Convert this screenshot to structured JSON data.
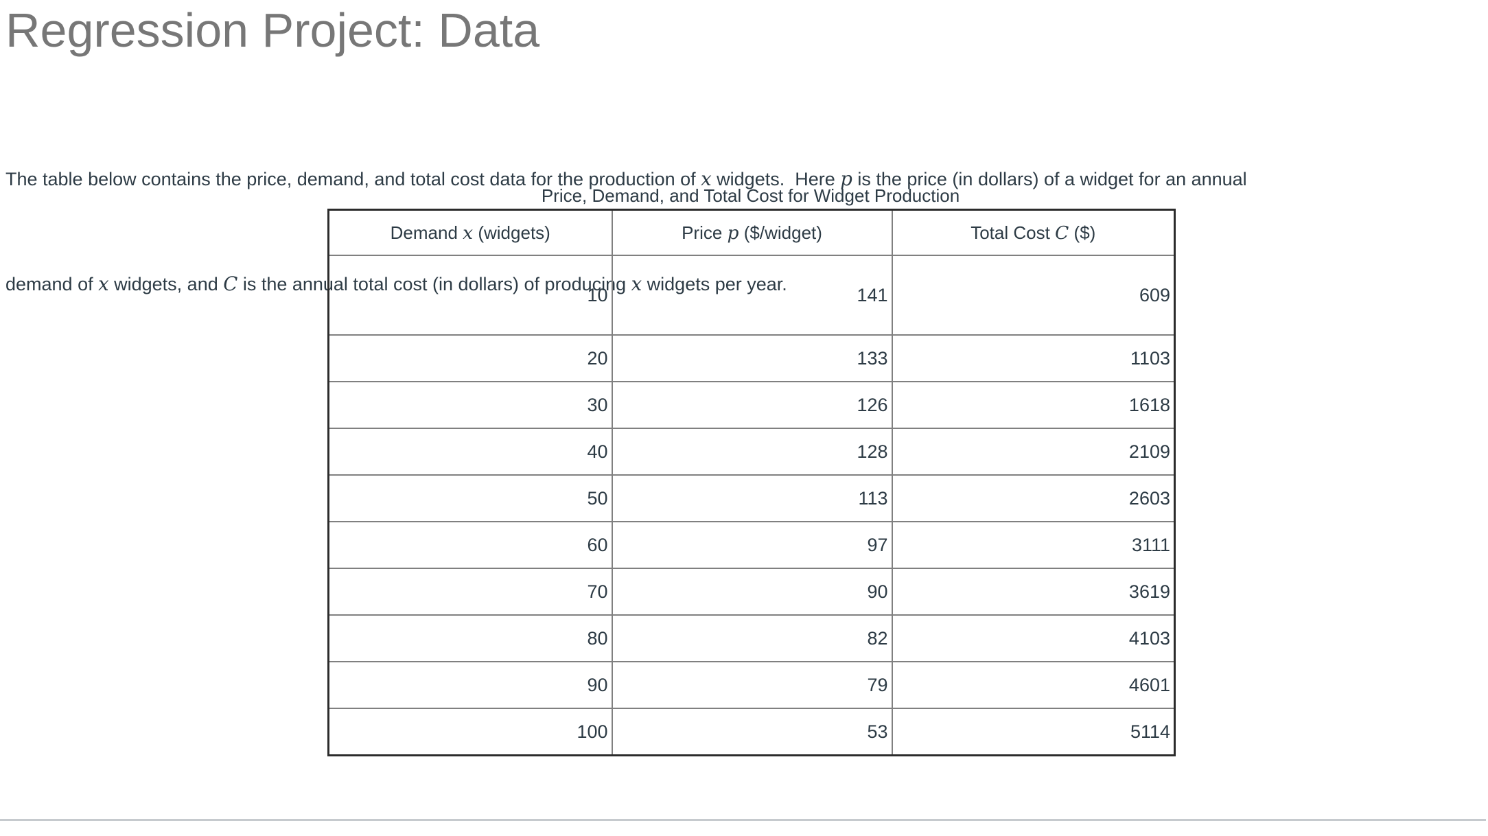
{
  "page": {
    "title": "Regression Project: Data"
  },
  "intro": {
    "lines": [
      [
        {
          "text": "The table below contains the price, demand, and total cost data for the production of "
        },
        {
          "math": "x"
        },
        {
          "text": " widgets.  Here "
        },
        {
          "math": "p"
        },
        {
          "text": " is the price (in dollars) of a widget for an annual"
        }
      ],
      [
        {
          "text": "demand of "
        },
        {
          "math": "x"
        },
        {
          "text": " widgets, and "
        },
        {
          "math": "C"
        },
        {
          "text": " is the annual total cost (in dollars) of producing "
        },
        {
          "math": "x"
        },
        {
          "text": " widgets per year."
        }
      ]
    ]
  },
  "table": {
    "caption": "Price, Demand, and Total Cost for Widget Production",
    "headers": [
      [
        {
          "text": "Demand "
        },
        {
          "math": "x"
        },
        {
          "text": " (widgets)"
        }
      ],
      [
        {
          "text": "Price "
        },
        {
          "math": "p"
        },
        {
          "text": " ($/widget)"
        }
      ],
      [
        {
          "text": "Total Cost "
        },
        {
          "math": "C"
        },
        {
          "text": " ($)"
        }
      ]
    ],
    "rows": [
      {
        "demand": "10",
        "price": "141",
        "cost": "609"
      },
      {
        "demand": "20",
        "price": "133",
        "cost": "1103"
      },
      {
        "demand": "30",
        "price": "126",
        "cost": "1618"
      },
      {
        "demand": "40",
        "price": "128",
        "cost": "2109"
      },
      {
        "demand": "50",
        "price": "113",
        "cost": "2603"
      },
      {
        "demand": "60",
        "price": "97",
        "cost": "3111"
      },
      {
        "demand": "70",
        "price": "90",
        "cost": "3619"
      },
      {
        "demand": "80",
        "price": "82",
        "cost": "4103"
      },
      {
        "demand": "90",
        "price": "79",
        "cost": "4601"
      },
      {
        "demand": "100",
        "price": "53",
        "cost": "5114"
      }
    ]
  },
  "chart_data": {
    "type": "table",
    "title": "Price, Demand, and Total Cost for Widget Production",
    "columns": [
      "Demand x (widgets)",
      "Price p ($/widget)",
      "Total Cost C ($)"
    ],
    "demand": [
      10,
      20,
      30,
      40,
      50,
      60,
      70,
      80,
      90,
      100
    ],
    "price": [
      141,
      133,
      126,
      128,
      113,
      97,
      90,
      82,
      79,
      53
    ],
    "total_cost": [
      609,
      1103,
      1618,
      2109,
      2603,
      3111,
      3619,
      4103,
      4601,
      5114
    ]
  },
  "colors": {
    "text": "#2D3B45",
    "title": "#777777",
    "table_outer_border": "#2B2B2B",
    "table_inner_border": "#808080",
    "divider": "#C6CACE",
    "background": "#FFFFFF"
  }
}
